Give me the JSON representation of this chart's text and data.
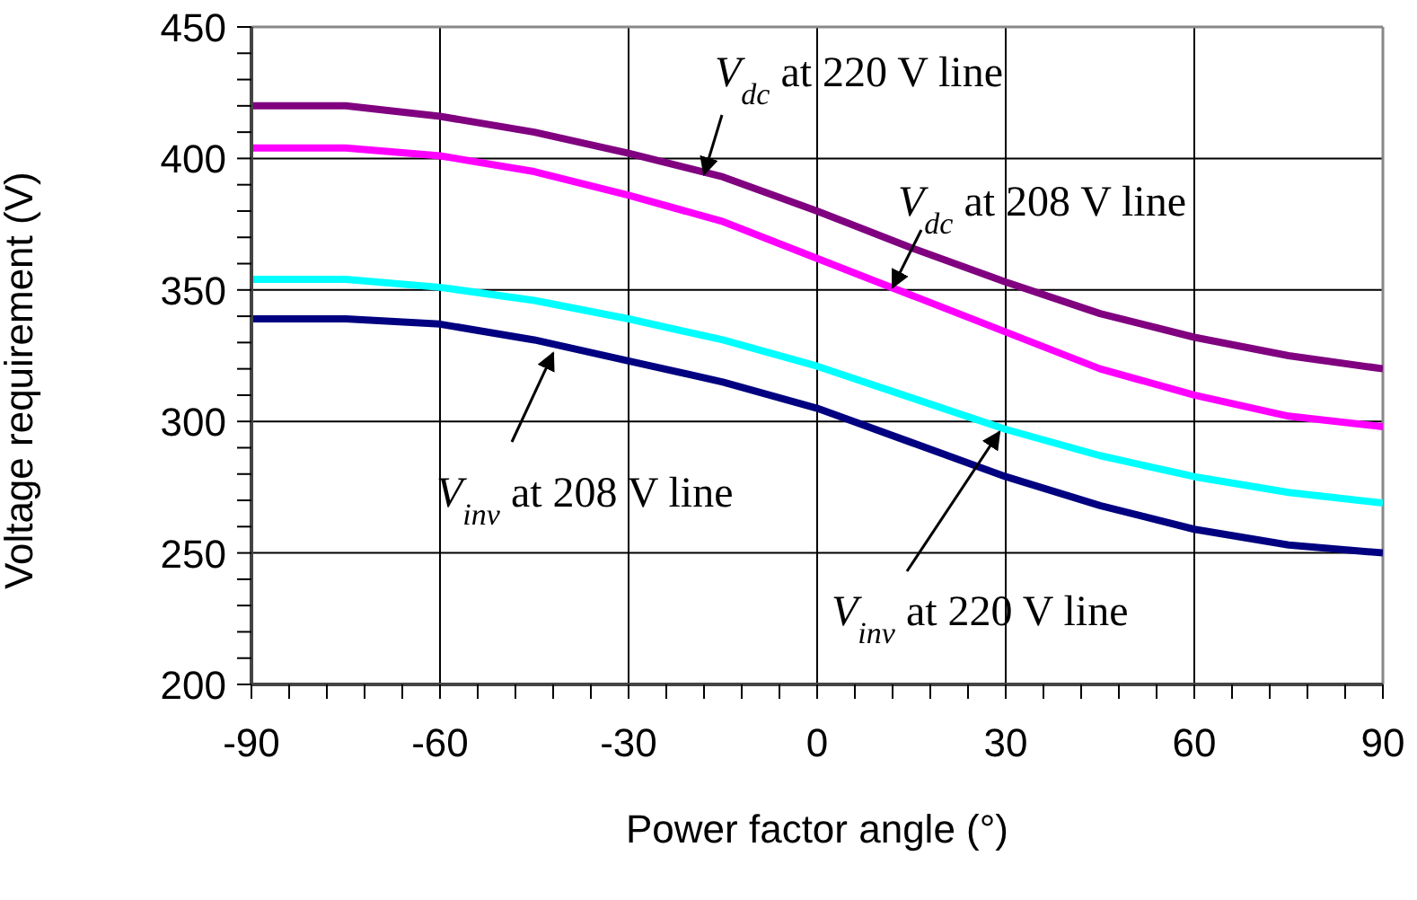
{
  "chart_data": {
    "type": "line",
    "xlabel": "Power factor angle (°)",
    "ylabel": "Voltage requirement (V)",
    "x": [
      -90,
      -75,
      -60,
      -45,
      -30,
      -15,
      0,
      15,
      30,
      45,
      60,
      75,
      90
    ],
    "series": [
      {
        "color": "#800080",
        "values": [
          420,
          420,
          416,
          410,
          402,
          393,
          380,
          366,
          353,
          341,
          332,
          325,
          320
        ]
      },
      {
        "color": "#ff00ff",
        "values": [
          404,
          404,
          401,
          395,
          386,
          376,
          362,
          348,
          334,
          320,
          310,
          302,
          298
        ]
      },
      {
        "color": "#00ffff",
        "values": [
          354,
          354,
          351,
          346,
          339,
          331,
          321,
          309,
          297,
          287,
          279,
          273,
          269
        ]
      },
      {
        "color": "#000080",
        "values": [
          339,
          339,
          337,
          331,
          323,
          315,
          305,
          292,
          279,
          268,
          259,
          253,
          250
        ]
      }
    ],
    "xlim": [
      -90,
      90
    ],
    "xticks": [
      -90,
      {
        "value": -84,
        "label": null
      },
      {
        "value": -78,
        "label": null
      },
      {
        "value": -72,
        "label": null
      },
      {
        "value": -66,
        "label": null
      },
      -60,
      {
        "value": -54,
        "label": null
      },
      {
        "value": -48,
        "label": null
      },
      {
        "value": -42,
        "label": null
      },
      {
        "value": -36,
        "label": null
      },
      -30,
      {
        "value": -24,
        "label": null
      },
      {
        "value": -18,
        "label": null
      },
      {
        "value": -12,
        "label": null
      },
      {
        "value": -6,
        "label": null
      },
      0,
      {
        "value": 6,
        "label": null
      },
      {
        "value": 12,
        "label": null
      },
      {
        "value": 18,
        "label": null
      },
      {
        "value": 24,
        "label": null
      },
      30,
      {
        "value": 36,
        "label": null
      },
      {
        "value": 42,
        "label": null
      },
      {
        "value": 48,
        "label": null
      },
      {
        "value": 54,
        "label": null
      },
      60,
      {
        "value": 66,
        "label": null
      },
      {
        "value": 72,
        "label": null
      },
      {
        "value": 78,
        "label": null
      },
      {
        "value": 84,
        "label": null
      },
      90
    ],
    "ylim": [
      200,
      450
    ],
    "yticks": [
      200,
      {
        "value": 210,
        "label": null
      },
      {
        "value": 220,
        "label": null
      },
      {
        "value": 230,
        "label": null
      },
      {
        "value": 240,
        "label": null
      },
      250,
      {
        "value": 260,
        "label": null
      },
      {
        "value": 270,
        "label": null
      },
      {
        "value": 280,
        "label": null
      },
      {
        "value": 290,
        "label": null
      },
      300,
      {
        "value": 310,
        "label": null
      },
      {
        "value": 320,
        "label": null
      },
      {
        "value": 330,
        "label": null
      },
      {
        "value": 340,
        "label": null
      },
      350,
      {
        "value": 360,
        "label": null
      },
      {
        "value": 370,
        "label": null
      },
      {
        "value": 380,
        "label": null
      },
      {
        "value": 390,
        "label": null
      },
      400,
      {
        "value": 410,
        "label": null
      },
      {
        "value": 420,
        "label": null
      },
      {
        "value": 430,
        "label": null
      },
      {
        "value": 440,
        "label": null
      },
      450
    ],
    "grid": true,
    "marker": "none",
    "line_style": "solid",
    "legend": false,
    "annotations": [
      {
        "text": "V$_{dc}$ at 220 V line",
        "x": -18,
        "y": 394
      },
      {
        "text": "V$_{dc}$ at 208 V line",
        "x": 12,
        "y": 351
      },
      {
        "text": "V$_{inv}$ at 208 V line",
        "x": -42,
        "y": 326
      },
      {
        "text": "V$_{inv}$ at 220 V line",
        "x": 29,
        "y": 296
      }
    ]
  }
}
